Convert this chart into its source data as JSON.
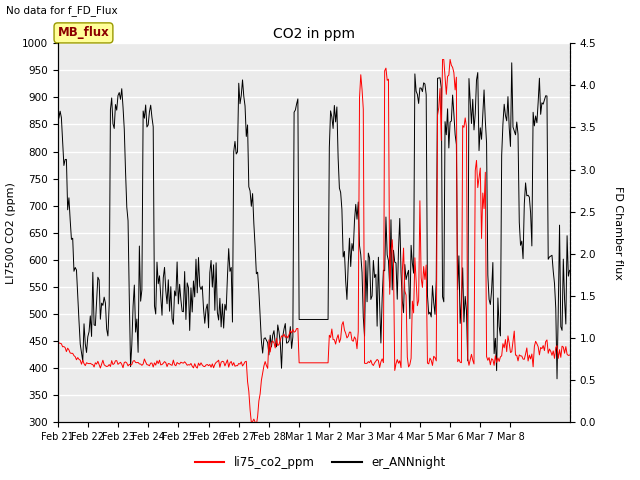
{
  "title": "CO2 in ppm",
  "subtitle": "No data for f_FD_Flux",
  "ylabel_left": "LI7500 CO2 (ppm)",
  "ylabel_right": "FD Chamber flux",
  "ylim_left": [
    300,
    1000
  ],
  "ylim_right": [
    0.0,
    4.5
  ],
  "yticks_left": [
    300,
    350,
    400,
    450,
    500,
    550,
    600,
    650,
    700,
    750,
    800,
    850,
    900,
    950,
    1000
  ],
  "yticks_right": [
    0.0,
    0.5,
    1.0,
    1.5,
    2.0,
    2.5,
    3.0,
    3.5,
    4.0,
    4.5
  ],
  "line1_color": "#FF0000",
  "line2_color": "#000000",
  "legend_labels": [
    "li75_co2_ppm",
    "er_ANNnight"
  ],
  "mb_flux_box_facecolor": "#FFFF99",
  "mb_flux_text_color": "#8B0000",
  "mb_flux_edge_color": "#999900",
  "bg_color": "#EBEBEB",
  "grid_color": "#FFFFFF",
  "xlabel_dates": [
    "Feb 21",
    "Feb 22",
    "Feb 23",
    "Feb 24",
    "Feb 25",
    "Feb 26",
    "Feb 27",
    "Feb 28",
    "Mar 1",
    "Mar 2",
    "Mar 3",
    "Mar 4",
    "Mar 5",
    "Mar 6",
    "Mar 7",
    "Mar 8"
  ]
}
